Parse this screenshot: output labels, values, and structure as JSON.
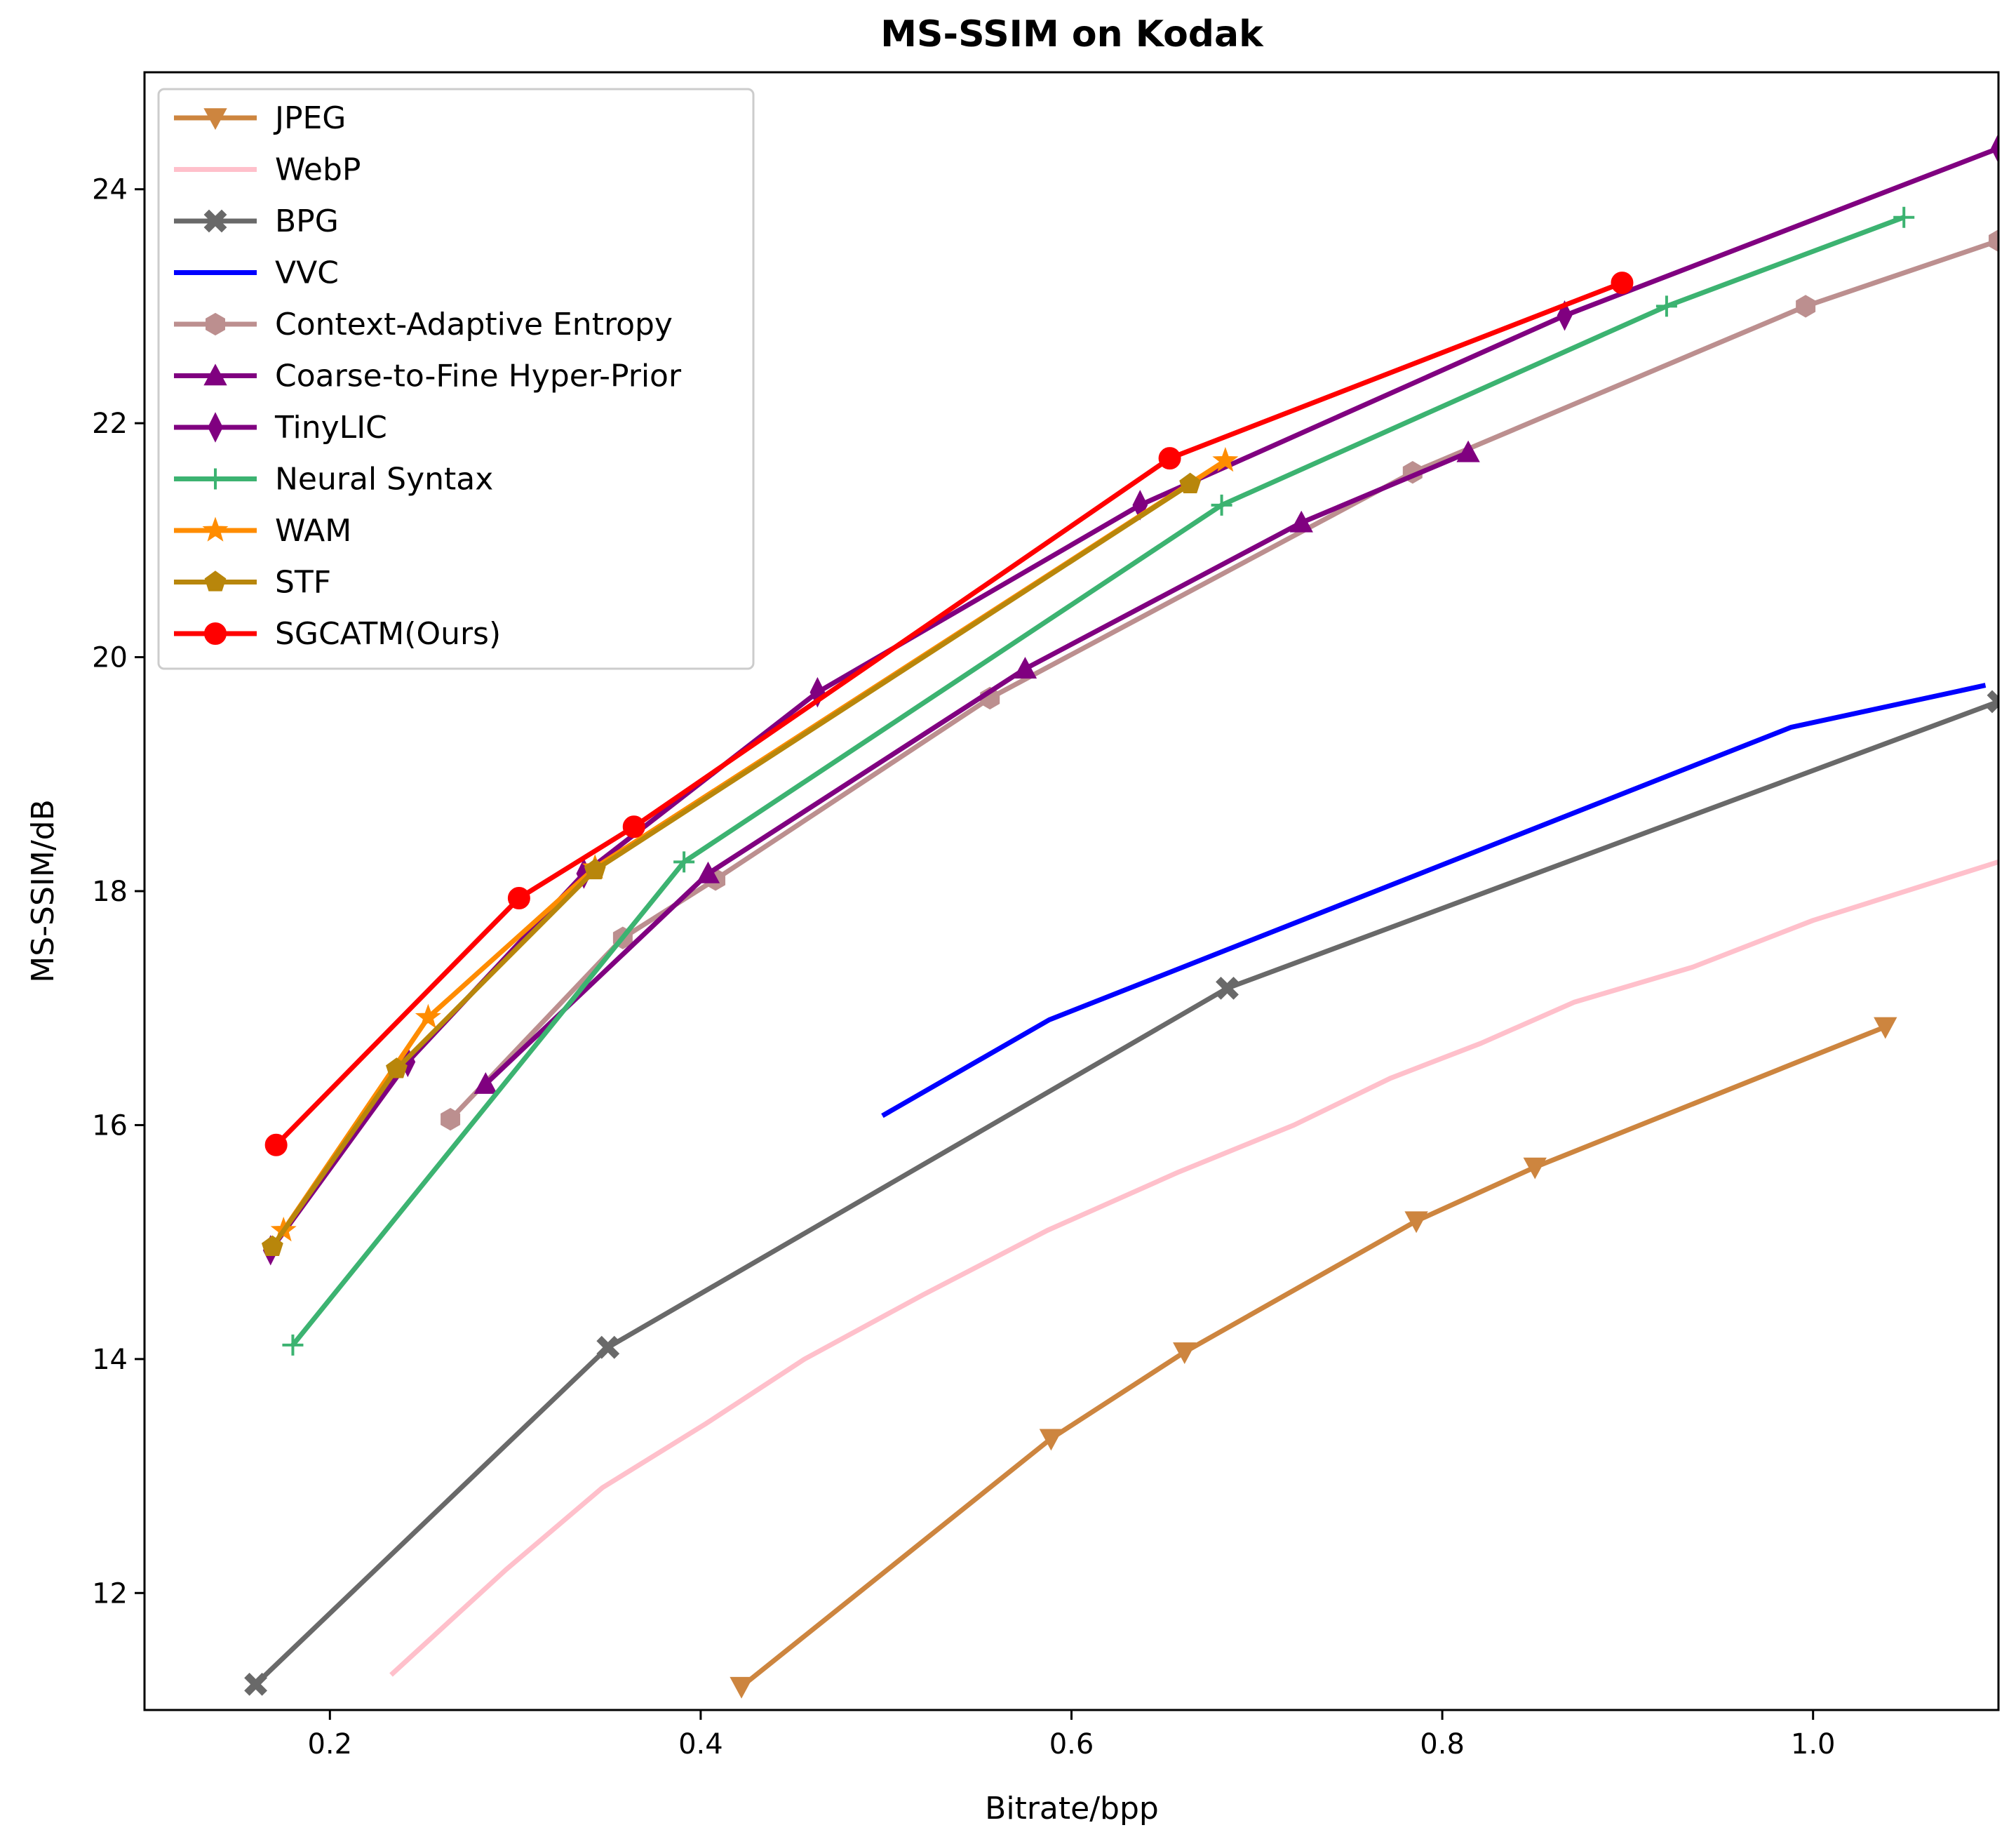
{
  "chart_data": {
    "type": "line",
    "title": "MS-SSIM on Kodak",
    "xlabel": "Bitrate/bpp",
    "ylabel": "MS-SSIM/dB",
    "xlim": [
      0.1,
      1.1
    ],
    "ylim": [
      11.0,
      25.0
    ],
    "xticks": [
      0.2,
      0.4,
      0.6,
      0.8,
      1.0
    ],
    "xtick_labels": [
      "0.2",
      "0.4",
      "0.6",
      "0.8",
      "1.0"
    ],
    "yticks": [
      12,
      14,
      16,
      18,
      20,
      22,
      24
    ],
    "ytick_labels": [
      "12",
      "14",
      "16",
      "18",
      "20",
      "22",
      "24"
    ],
    "legend_position": "top-left",
    "series": [
      {
        "name": "JPEG",
        "color": "#cd853f",
        "marker": "triangle-down",
        "x": [
          0.422,
          0.589,
          0.661,
          0.786,
          0.85,
          1.039
        ],
        "y": [
          11.2,
          13.32,
          14.06,
          15.18,
          15.64,
          16.84
        ]
      },
      {
        "name": "WebP",
        "color": "#ffc0cb",
        "marker": "none",
        "x": [
          0.233,
          0.295,
          0.347,
          0.403,
          0.456,
          0.52,
          0.587,
          0.658,
          0.72,
          0.772,
          0.821,
          0.871,
          0.935,
          1.0,
          1.1
        ],
        "y": [
          11.3,
          12.2,
          12.9,
          13.45,
          14.0,
          14.55,
          15.1,
          15.6,
          16.0,
          16.4,
          16.7,
          17.05,
          17.35,
          17.75,
          18.25
        ]
      },
      {
        "name": "BPG",
        "color": "#696969",
        "marker": "x-filled",
        "x": [
          0.16,
          0.35,
          0.684,
          1.1
        ],
        "y": [
          11.22,
          14.1,
          17.17,
          19.62
        ]
      },
      {
        "name": "VVC",
        "color": "#0000ff",
        "marker": "none",
        "x": [
          0.498,
          0.588,
          0.988,
          1.093
        ],
        "y": [
          16.08,
          16.9,
          19.4,
          19.76
        ]
      },
      {
        "name": "Context-Adaptive Entropy",
        "color": "#bc8f8f",
        "marker": "hexagon",
        "x": [
          0.265,
          0.358,
          0.408,
          0.556,
          0.784,
          0.996,
          1.1
        ],
        "y": [
          16.05,
          17.6,
          18.1,
          19.65,
          21.58,
          23.0,
          23.56
        ]
      },
      {
        "name": "Coarse-to-Fine Hyper-Prior",
        "color": "#800080",
        "marker": "triangle-up",
        "x": [
          0.284,
          0.404,
          0.575,
          0.724,
          0.814
        ],
        "y": [
          16.35,
          18.15,
          19.9,
          21.15,
          21.75
        ]
      },
      {
        "name": "TinyLIC",
        "color": "#800080",
        "marker": "thin-diamond",
        "x": [
          0.168,
          0.242,
          0.337,
          0.463,
          0.637,
          0.866,
          1.1
        ],
        "y": [
          14.93,
          16.54,
          18.15,
          19.7,
          21.3,
          22.92,
          24.35
        ]
      },
      {
        "name": "Neural Syntax",
        "color": "#3cb371",
        "marker": "plus",
        "x": [
          0.18,
          0.391,
          0.681,
          0.921,
          1.049
        ],
        "y": [
          14.12,
          18.25,
          21.3,
          23.0,
          23.76
        ]
      },
      {
        "name": "WAM",
        "color": "#ff8c00",
        "marker": "star",
        "x": [
          0.175,
          0.253,
          0.343,
          0.683
        ],
        "y": [
          15.1,
          16.92,
          18.2,
          21.68
        ]
      },
      {
        "name": "STF",
        "color": "#b8860b",
        "marker": "pentagon",
        "x": [
          0.169,
          0.236,
          0.343,
          0.664
        ],
        "y": [
          14.96,
          16.48,
          18.18,
          21.48
        ]
      },
      {
        "name": "SGCATM(Ours)",
        "color": "#ff0000",
        "marker": "circle",
        "x": [
          0.171,
          0.302,
          0.364,
          0.653,
          0.897
        ],
        "y": [
          15.83,
          17.94,
          18.55,
          21.7,
          23.2
        ]
      }
    ]
  }
}
